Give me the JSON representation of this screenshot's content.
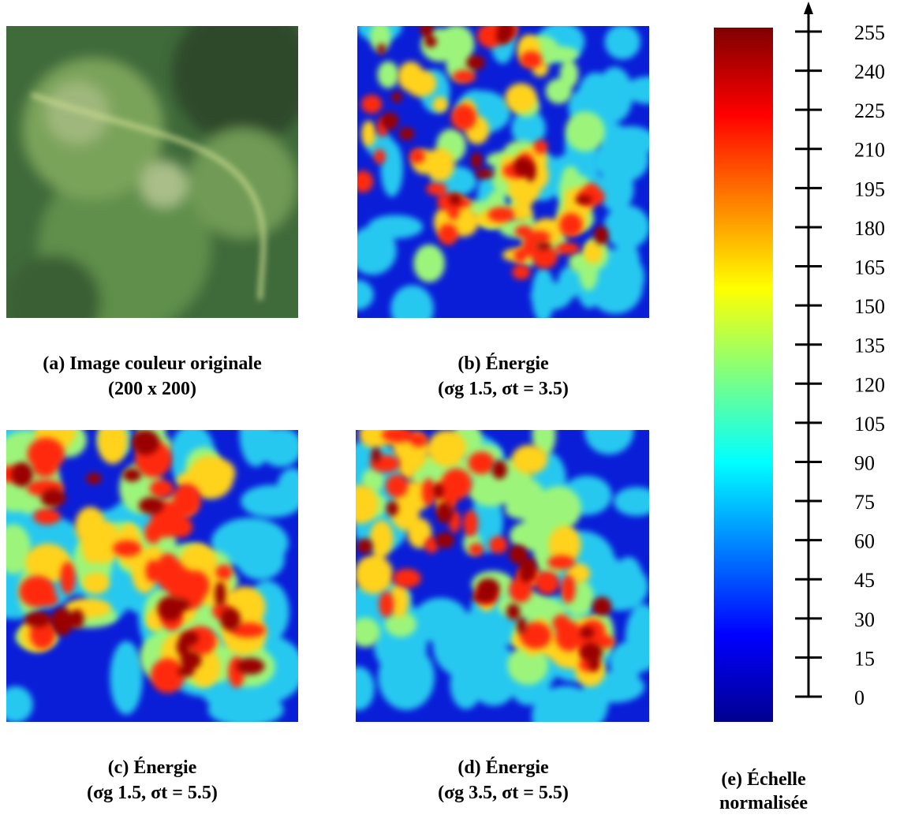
{
  "panels": [
    {
      "label": "(a) Image couleur originale",
      "detail": "(200 x 200)"
    },
    {
      "label": "(b) Énergie",
      "detail": "(σg 1.5, σt = 3.5)"
    },
    {
      "label": "(c) Énergie",
      "detail": "(σg 1.5, σt = 5.5)"
    },
    {
      "label": "(d) Énergie",
      "detail": "(σg 3.5, σt = 5.5)"
    }
  ],
  "scale": {
    "title": [
      "(e) Échelle",
      "normalisée"
    ],
    "lim": [
      0,
      255
    ],
    "ticks": [
      0,
      15,
      30,
      45,
      60,
      75,
      90,
      105,
      120,
      135,
      150,
      165,
      180,
      195,
      210,
      225,
      240,
      255
    ]
  }
}
